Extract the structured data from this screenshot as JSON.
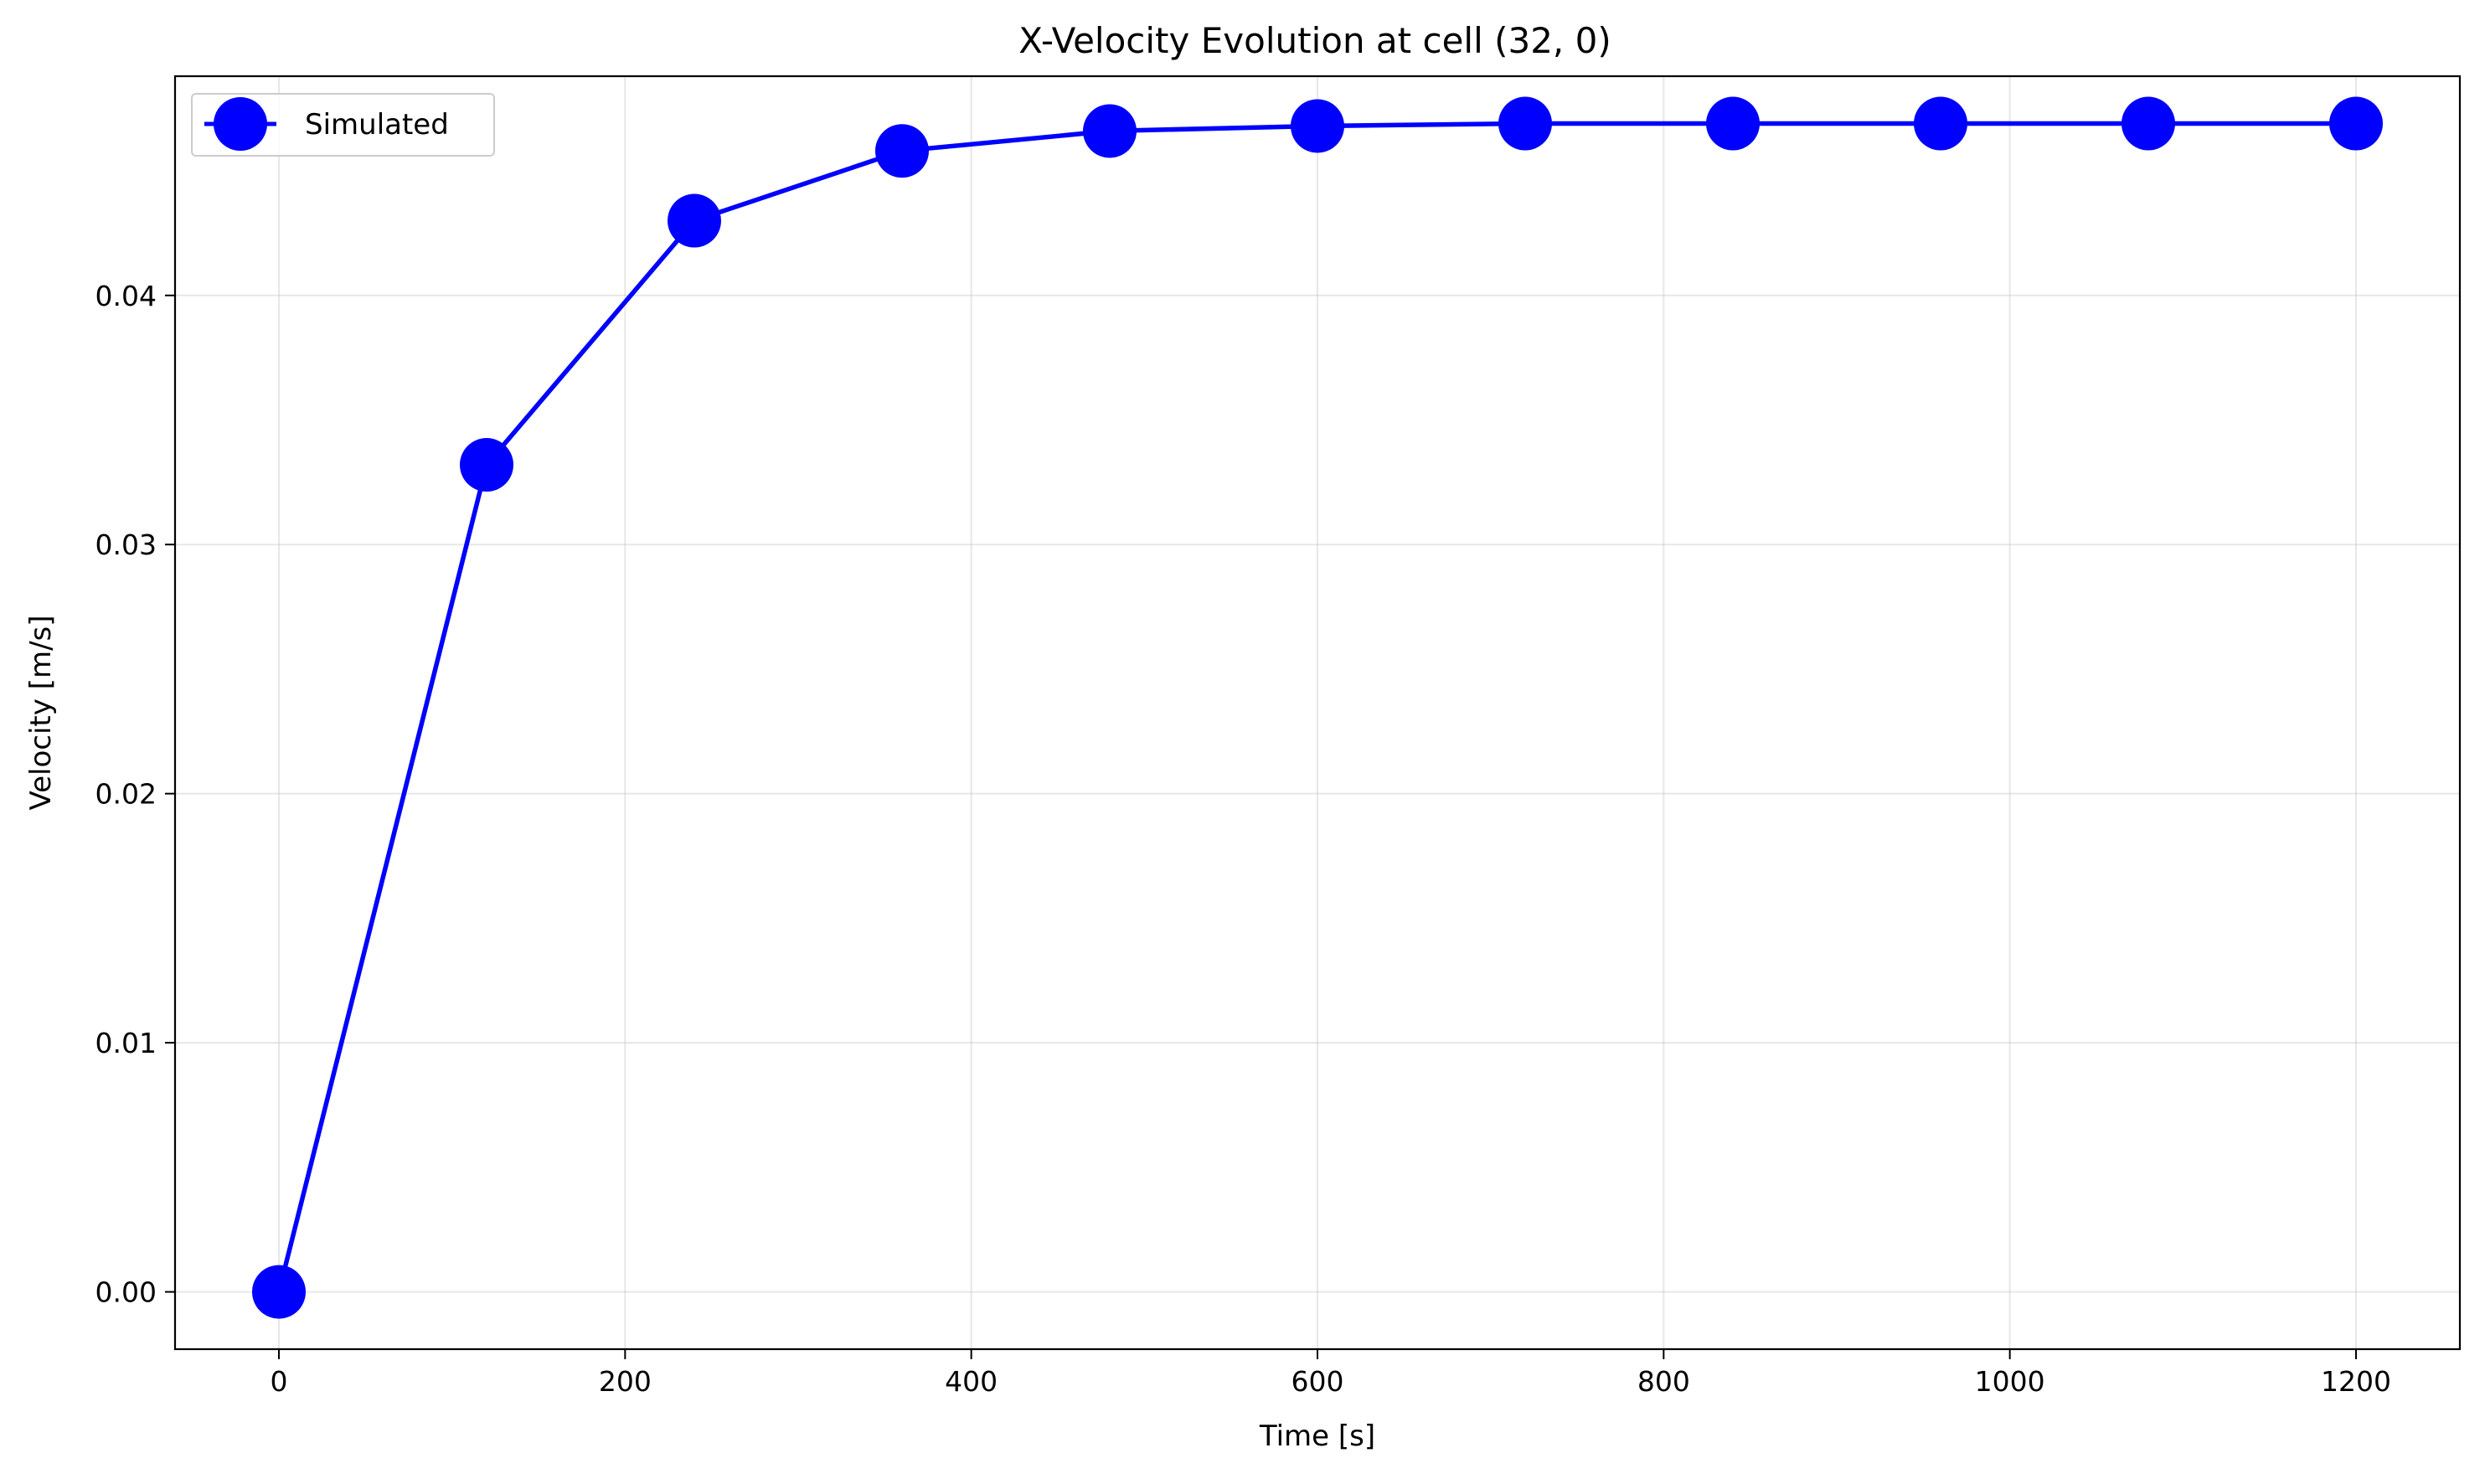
{
  "chart_data": {
    "type": "line",
    "title": "X-Velocity Evolution at cell (32, 0)",
    "xlabel": "Time [s]",
    "ylabel": "Velocity [m/s]",
    "xlim": [
      -60,
      1260
    ],
    "ylim": [
      -0.0023,
      0.0488
    ],
    "xticks": [
      0,
      200,
      400,
      600,
      800,
      1000,
      1200
    ],
    "xtick_labels": [
      "0",
      "200",
      "400",
      "600",
      "800",
      "1000",
      "1200"
    ],
    "yticks": [
      0.0,
      0.01,
      0.02,
      0.03,
      0.04
    ],
    "ytick_labels": [
      "0.00",
      "0.01",
      "0.02",
      "0.03",
      "0.04"
    ],
    "grid": true,
    "legend_position": "upper-left",
    "x": [
      0,
      120,
      240,
      360,
      480,
      600,
      720,
      840,
      960,
      1080,
      1200
    ],
    "series": [
      {
        "name": "Simulated",
        "color": "#0000ff",
        "marker": "circle",
        "values": [
          0.0,
          0.0332,
          0.043,
          0.0458,
          0.0466,
          0.0468,
          0.0469,
          0.0469,
          0.0469,
          0.0469,
          0.0469
        ]
      }
    ]
  }
}
